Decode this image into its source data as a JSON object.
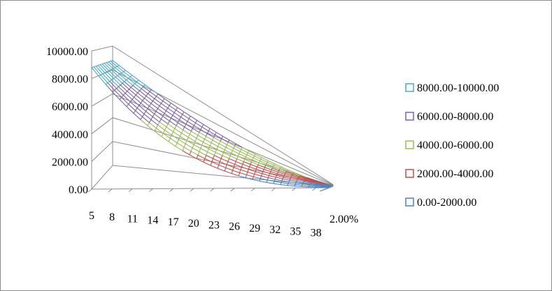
{
  "chart_data": {
    "type": "surface-wireframe",
    "title": "",
    "z_ticks": [
      "0.00",
      "2000.00",
      "4000.00",
      "6000.00",
      "8000.00",
      "10000.00"
    ],
    "zlim": [
      0,
      10000
    ],
    "x_ticks": [
      "5",
      "8",
      "11",
      "14",
      "17",
      "20",
      "23",
      "26",
      "29",
      "32",
      "35",
      "38"
    ],
    "x_range": [
      5,
      40
    ],
    "depth_ticks": [
      "2.00%"
    ],
    "depth_range_pct": [
      2,
      12
    ],
    "legend_position": "right",
    "grid": true,
    "bands": [
      {
        "label": "8000.00-10000.00",
        "color": "#4bacc6",
        "min": 8000,
        "max": 10000
      },
      {
        "label": "6000.00-8000.00",
        "color": "#8064a2",
        "min": 6000,
        "max": 8000
      },
      {
        "label": "4000.00-6000.00",
        "color": "#9bbb59",
        "min": 4000,
        "max": 6000
      },
      {
        "label": "2000.00-4000.00",
        "color": "#c0504d",
        "min": 2000,
        "max": 4000
      },
      {
        "label": "0.00-2000.00",
        "color": "#4f81bd",
        "min": 0,
        "max": 2000
      }
    ]
  }
}
